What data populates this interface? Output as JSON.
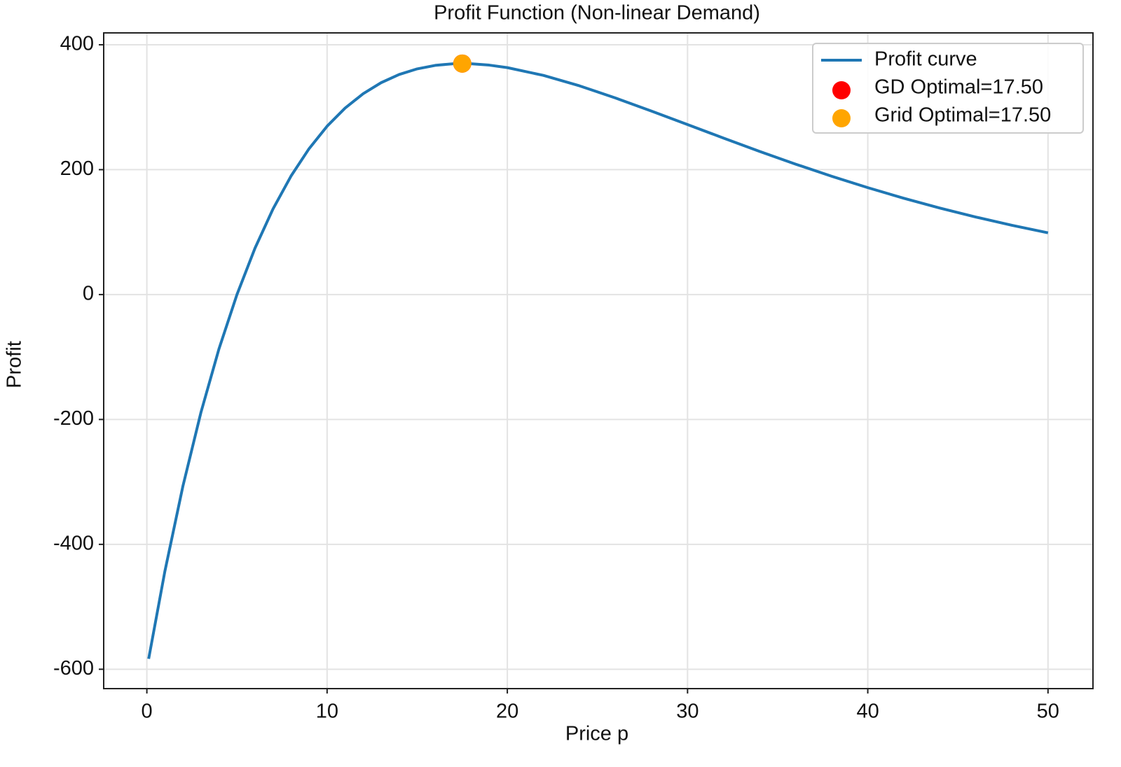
{
  "chart_data": {
    "type": "line",
    "title": "Profit Function (Non-linear Demand)",
    "xlabel": "Price p",
    "ylabel": "Profit",
    "xlim": [
      -2.395,
      52.495
    ],
    "ylim": [
      -631,
      419
    ],
    "xticks": [
      0,
      10,
      20,
      30,
      40,
      50
    ],
    "yticks": [
      -600,
      -400,
      -200,
      0,
      200,
      400
    ],
    "grid": true,
    "legend": "upper right",
    "series": [
      {
        "name": "Profit curve",
        "type": "line",
        "color": "#1f77b4",
        "x": [
          0.1,
          1,
          2,
          3,
          4,
          5,
          6,
          7,
          8,
          9,
          10,
          11,
          12,
          13,
          14,
          15,
          16,
          17,
          18,
          19,
          20,
          22,
          24,
          26,
          28,
          30,
          32,
          34,
          36,
          38,
          40,
          42,
          44,
          46,
          48,
          50
        ],
        "values": [
          -583.3,
          -443.1,
          -306.8,
          -188.8,
          -87.1,
          0,
          74.3,
          137.1,
          189.8,
          233.6,
          269.6,
          298.6,
          321.6,
          339.3,
          352.4,
          361.4,
          367.0,
          369.6,
          369.6,
          367.4,
          363.4,
          351.0,
          334.3,
          314.8,
          293.8,
          272.2,
          250.5,
          229.2,
          208.8,
          189.4,
          171.2,
          154.2,
          138.5,
          124.1,
          110.9,
          98.9
        ]
      },
      {
        "name": "GD Optimal=17.50",
        "type": "scatter",
        "color": "red",
        "x": [
          17.5
        ],
        "values": [
          369.9
        ]
      },
      {
        "name": "Grid Optimal=17.50",
        "type": "scatter",
        "color": "orange",
        "x": [
          17.5
        ],
        "values": [
          369.9
        ]
      }
    ]
  }
}
